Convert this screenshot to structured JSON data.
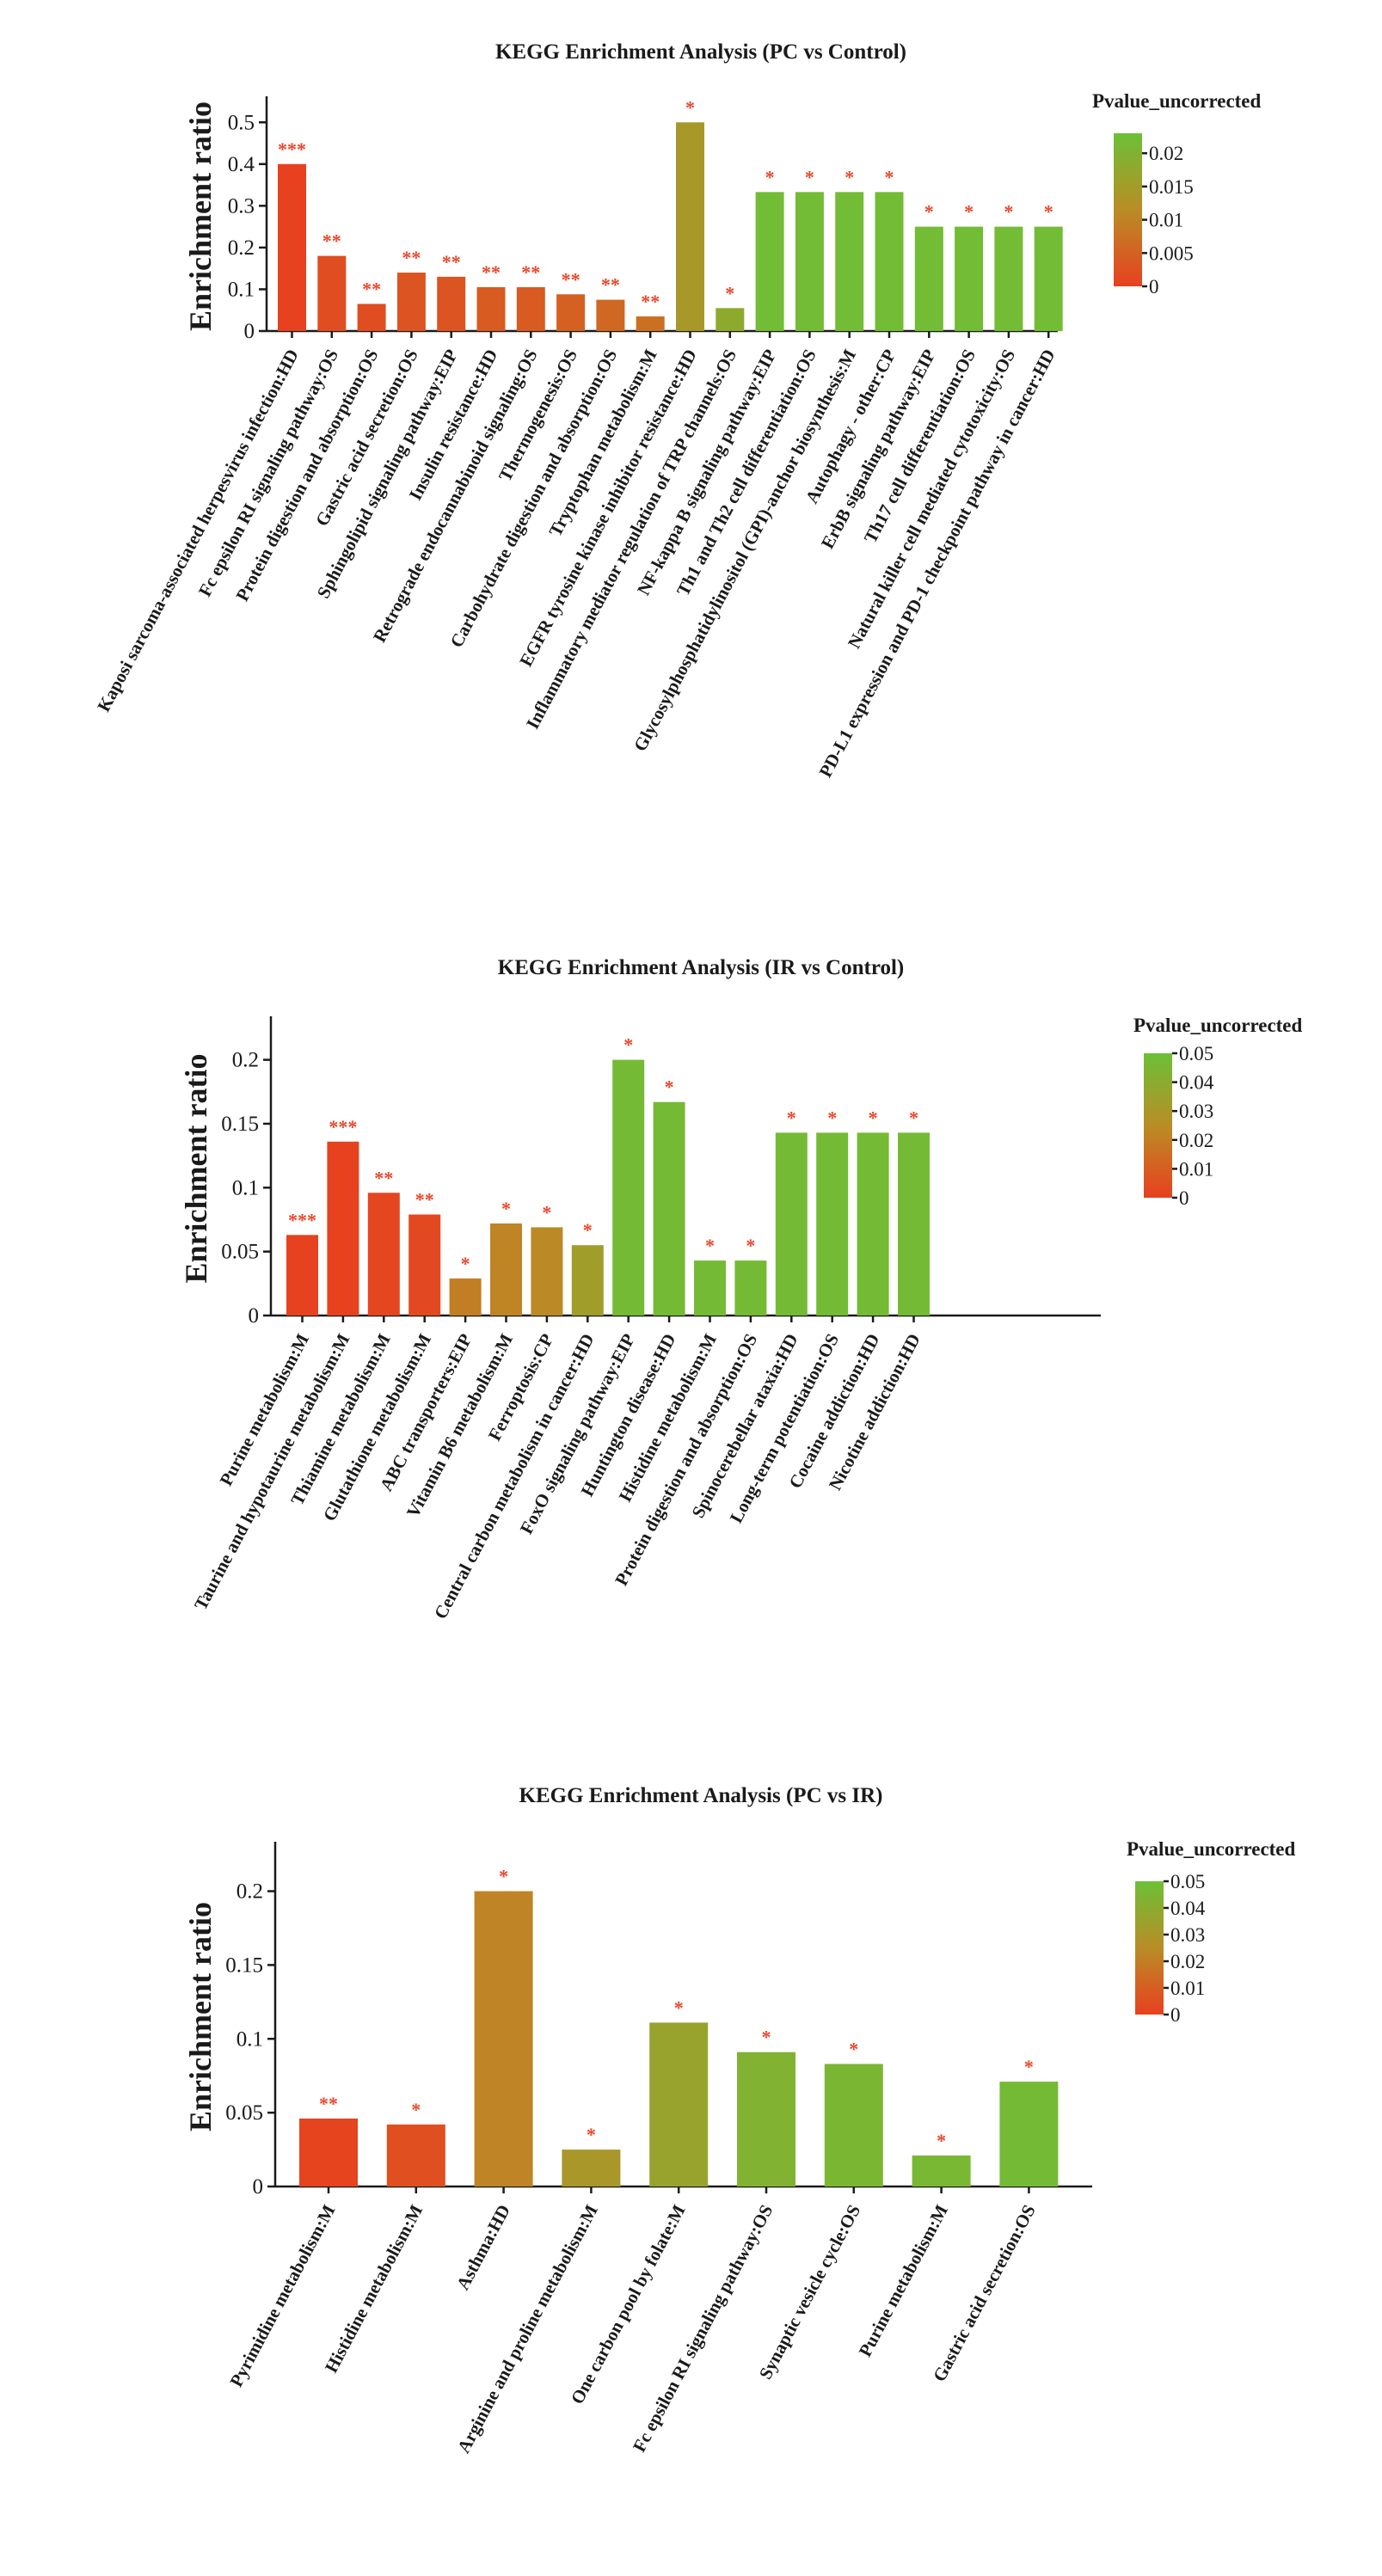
{
  "figure_title": "KEGG Enrichment figure (three panels)",
  "chart_data": [
    {
      "type": "bar",
      "title": "KEGG Enrichment Analysis (PC vs Control)",
      "ylabel": "Enrichment ratio",
      "xlabel": "",
      "ylim": [
        0,
        0.55
      ],
      "yticks": [
        0,
        0.1,
        0.2,
        0.3,
        0.4,
        0.5
      ],
      "ytick_labels": [
        "0",
        "0.1",
        "0.2",
        "0.3",
        "0.4",
        "0.5"
      ],
      "grid": false,
      "legend": {
        "title": "Pvalue_uncorrected",
        "placement": "top-right",
        "range": [
          0,
          0.023
        ],
        "ticks": [
          0,
          0.005,
          0.01,
          0.015,
          0.02
        ],
        "tick_labels": [
          "0",
          "0.005",
          "0.01",
          "0.015",
          "0.02"
        ]
      },
      "categories": [
        "Kaposi sarcoma-associated herpesvirus infection:HD",
        "Fc epsilon RI signaling pathway:OS",
        "Protein digestion and absorption:OS",
        "Gastric acid secretion:OS",
        "Sphingolipid signaling pathway:EIP",
        "Insulin resistance:HD",
        "Retrograde endocannabinoid signaling:OS",
        "Thermogenesis:OS",
        "Carbohydrate digestion and absorption:OS",
        "Tryptophan metabolism:M",
        "EGFR tyrosine kinase inhibitor resistance:HD",
        "Inflammatory mediator regulation of TRP channels:OS",
        "NF-kappa B signaling pathway:EIP",
        "Th1 and Th2 cell differentiation:OS",
        "Glycosylphosphatidylinositol (GPI)-anchor biosynthesis:M",
        "Autophagy - other:CP",
        "ErbB signaling pathway:EIP",
        "Th17 cell differentiation:OS",
        "Natural killer cell mediated cytotoxicity:OS",
        "PD-L1 expression and PD-1 checkpoint pathway in cancer:HD"
      ],
      "values": [
        0.4,
        0.18,
        0.065,
        0.14,
        0.13,
        0.105,
        0.105,
        0.088,
        0.075,
        0.035,
        0.5,
        0.055,
        0.333,
        0.333,
        0.333,
        0.333,
        0.25,
        0.25,
        0.25,
        0.25
      ],
      "pvalues": [
        0.0002,
        0.002,
        0.002,
        0.003,
        0.003,
        0.004,
        0.004,
        0.005,
        0.006,
        0.007,
        0.014,
        0.018,
        0.022,
        0.022,
        0.022,
        0.022,
        0.022,
        0.022,
        0.022,
        0.022
      ],
      "significance": [
        "***",
        "**",
        "**",
        "**",
        "**",
        "**",
        "**",
        "**",
        "**",
        "**",
        "*",
        "*",
        "*",
        "*",
        "*",
        "*",
        "*",
        "*",
        "*",
        "*"
      ]
    },
    {
      "type": "bar",
      "title": "KEGG Enrichment Analysis (IR vs Control)",
      "ylabel": "Enrichment ratio",
      "xlabel": "",
      "ylim": [
        0,
        0.23
      ],
      "yticks": [
        0,
        0.05,
        0.1,
        0.15,
        0.2
      ],
      "ytick_labels": [
        "0",
        "0.05",
        "0.1",
        "0.15",
        "0.2"
      ],
      "grid": false,
      "legend": {
        "title": "Pvalue_uncorrected",
        "placement": "top-right",
        "range": [
          0,
          0.05
        ],
        "ticks": [
          0,
          0.01,
          0.02,
          0.03,
          0.04,
          0.05
        ],
        "tick_labels": [
          "0",
          "0.01",
          "0.02",
          "0.03",
          "0.04",
          "0.05"
        ]
      },
      "categories": [
        "Purine metabolism:M",
        "Taurine and hypotaurine metabolism:M",
        "Thiamine metabolism:M",
        "Glutathione metabolism:M",
        "ABC transporters:EIP",
        "Vitamin B6 metabolism:M",
        "Ferroptosis:CP",
        "Central carbon metabolism in cancer:HD",
        "FoxO signaling pathway:EIP",
        "Huntington disease:HD",
        "Histidine metabolism:M",
        "Protein digestion and absorption:OS",
        "Spinocerebellar ataxia:HD",
        "Long-term potentiation:OS",
        "Cocaine addiction:HD",
        "Nicotine addiction:HD"
      ],
      "values": [
        0.063,
        0.136,
        0.096,
        0.079,
        0.029,
        0.072,
        0.069,
        0.055,
        0.2,
        0.167,
        0.043,
        0.043,
        0.143,
        0.143,
        0.143,
        0.143
      ],
      "pvalues": [
        0.0005,
        0.0008,
        0.002,
        0.003,
        0.02,
        0.022,
        0.024,
        0.033,
        0.047,
        0.047,
        0.047,
        0.047,
        0.047,
        0.047,
        0.047,
        0.047
      ],
      "significance": [
        "***",
        "***",
        "**",
        "**",
        "*",
        "*",
        "*",
        "*",
        "*",
        "*",
        "*",
        "*",
        "*",
        "*",
        "*",
        "*"
      ]
    },
    {
      "type": "bar",
      "title": "KEGG Enrichment Analysis (PC vs IR)",
      "ylabel": "Enrichment ratio",
      "xlabel": "",
      "ylim": [
        0,
        0.23
      ],
      "yticks": [
        0,
        0.05,
        0.1,
        0.15,
        0.2
      ],
      "ytick_labels": [
        "0",
        "0.05",
        "0.1",
        "0.15",
        "0.2"
      ],
      "grid": false,
      "legend": {
        "title": "Pvalue_uncorrected",
        "placement": "top-right",
        "range": [
          0,
          0.05
        ],
        "ticks": [
          0,
          0.01,
          0.02,
          0.03,
          0.04,
          0.05
        ],
        "tick_labels": [
          "0",
          "0.01",
          "0.02",
          "0.03",
          "0.04",
          "0.05"
        ]
      },
      "categories": [
        "Pyrimidine metabolism:M",
        "Histidine metabolism:M",
        "Asthma:HD",
        "Arginine and proline metabolism:M",
        "One carbon pool by folate:M",
        "Fc epsilon RI signaling pathway:OS",
        "Synaptic vesicle cycle:OS",
        "Purine metabolism:M",
        "Gastric acid secretion:OS"
      ],
      "values": [
        0.046,
        0.042,
        0.2,
        0.025,
        0.111,
        0.091,
        0.083,
        0.021,
        0.071
      ],
      "pvalues": [
        0.001,
        0.005,
        0.022,
        0.03,
        0.036,
        0.043,
        0.045,
        0.046,
        0.047
      ],
      "significance": [
        "**",
        "*",
        "*",
        "*",
        "*",
        "*",
        "*",
        "*",
        "*"
      ]
    }
  ]
}
